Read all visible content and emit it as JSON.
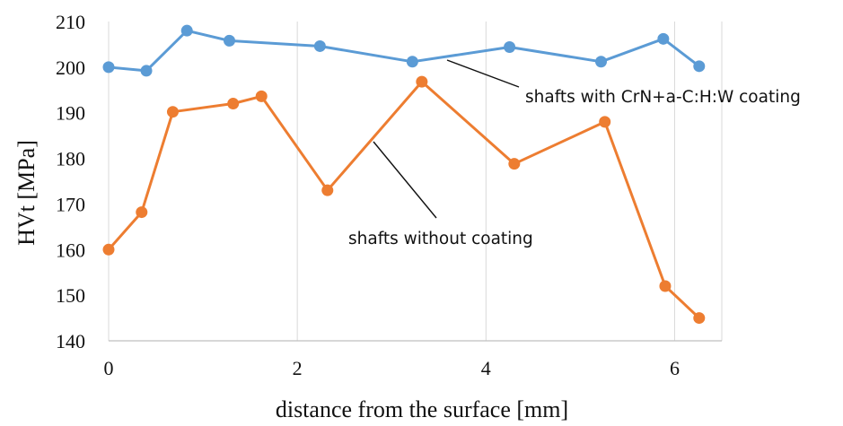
{
  "chart_data": {
    "type": "scatter",
    "title": "",
    "xlabel": "distance from the surface [mm]",
    "ylabel": "HVt [MPa]",
    "xlim": [
      0,
      6.5
    ],
    "ylim": [
      140,
      210
    ],
    "xticks": [
      0,
      2,
      4,
      6
    ],
    "yticks": [
      140,
      150,
      160,
      170,
      180,
      190,
      200,
      210
    ],
    "grid": {
      "vertical": true,
      "horizontal": false
    },
    "series": [
      {
        "name": "shafts with CrN+a-C:H:W coating",
        "color": "#5b9bd5",
        "x": [
          0,
          0.4,
          0.83,
          1.28,
          2.24,
          3.22,
          4.25,
          5.22,
          5.88,
          6.26
        ],
        "y": [
          200,
          199.2,
          208,
          205.8,
          204.6,
          201.2,
          204.4,
          201.2,
          206.2,
          200.2
        ]
      },
      {
        "name": "shafts without coating",
        "color": "#ed7d31",
        "x": [
          0,
          0.35,
          0.68,
          1.32,
          1.62,
          2.32,
          3.32,
          4.3,
          5.26,
          5.9,
          6.26
        ],
        "y": [
          160,
          168.2,
          190.2,
          192,
          193.6,
          173,
          196.8,
          178.8,
          188,
          152,
          145
        ]
      }
    ],
    "annotations": [
      {
        "text": "shafts with CrN+a-C:H:W coating",
        "series": 0,
        "pointer_at": [
          3.55,
          201.8
        ]
      },
      {
        "text": "shafts without coating",
        "series": 1,
        "pointer_at": [
          2.8,
          184
        ]
      }
    ]
  }
}
